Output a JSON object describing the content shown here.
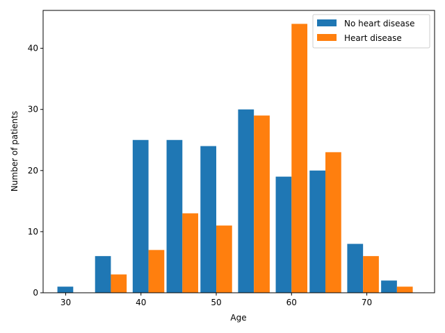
{
  "chart_data": {
    "type": "bar",
    "x": [
      31,
      36,
      41,
      45.5,
      50,
      55,
      60,
      64.5,
      69.5,
      74
    ],
    "xticks": [
      30,
      40,
      50,
      60,
      70
    ],
    "xlim": [
      27,
      79
    ],
    "yticks": [
      0,
      10,
      20,
      30,
      40
    ],
    "ylim": [
      0,
      46.2
    ],
    "xlabel": "Age",
    "ylabel": "Number of patients",
    "legend": "top-right",
    "series": [
      {
        "name": "No heart disease",
        "color": "#1f77b4",
        "values": [
          1,
          6,
          25,
          25,
          24,
          30,
          19,
          20,
          8,
          2
        ]
      },
      {
        "name": "Heart disease",
        "color": "#ff7f0e",
        "values": [
          0,
          3,
          7,
          13,
          11,
          29,
          44,
          23,
          6,
          1
        ]
      }
    ]
  }
}
